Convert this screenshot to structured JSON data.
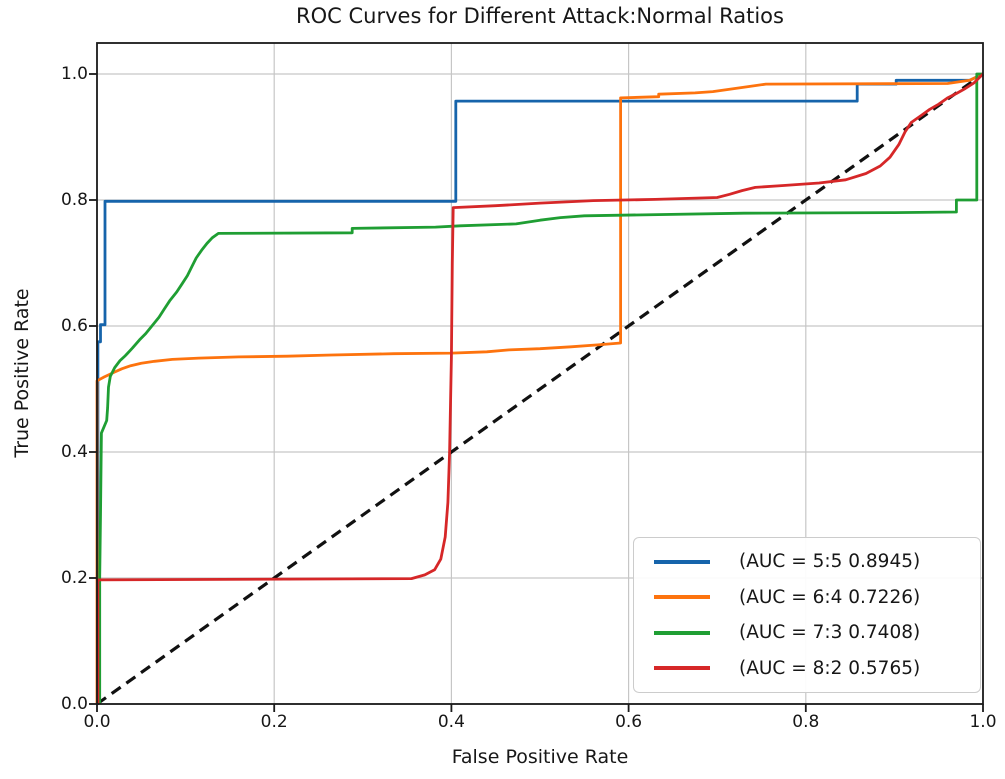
{
  "title": "ROC Curves for Different Attack:Normal Ratios",
  "chart_data": {
    "type": "line",
    "title": "ROC Curves for Different Attack:Normal Ratios",
    "xlabel": "False Positive Rate",
    "ylabel": "True Positive Rate",
    "xlim": [
      0,
      1
    ],
    "ylim": [
      0,
      1.05
    ],
    "grid": true,
    "grid_color": "#c6c6c6",
    "spine_color": "#1a1a1a",
    "legend_position": "lower right",
    "x_ticks": [
      "0.0",
      "0.2",
      "0.4",
      "0.6",
      "0.8",
      "1.0"
    ],
    "y_ticks": [
      "0.0",
      "0.2",
      "0.4",
      "0.6",
      "0.8",
      "1.0"
    ],
    "series": [
      {
        "name": "chance-diagonal",
        "label": "",
        "color": "#111111",
        "style": "dashed",
        "in_legend": false,
        "points": [
          [
            0,
            0
          ],
          [
            1,
            1
          ]
        ]
      },
      {
        "name": "ratio-5-5",
        "label": "(AUC = 5:5 0.8945)",
        "color": "#1664ab",
        "style": "solid",
        "in_legend": true,
        "points": [
          [
            0.001,
            0
          ],
          [
            0.001,
            0.575
          ],
          [
            0.004,
            0.575
          ],
          [
            0.004,
            0.602
          ],
          [
            0.009,
            0.602
          ],
          [
            0.009,
            0.798
          ],
          [
            0.405,
            0.798
          ],
          [
            0.405,
            0.957
          ],
          [
            0.858,
            0.957
          ],
          [
            0.858,
            0.984
          ],
          [
            0.902,
            0.984
          ],
          [
            0.902,
            0.99
          ],
          [
            0.985,
            0.99
          ],
          [
            1,
            1
          ]
        ]
      },
      {
        "name": "ratio-6-4",
        "label": "(AUC = 6:4 0.7226)",
        "color": "#fd730e",
        "style": "solid",
        "in_legend": true,
        "points": [
          [
            0,
            0
          ],
          [
            0,
            0.513
          ],
          [
            0.008,
            0.519
          ],
          [
            0.014,
            0.523
          ],
          [
            0.02,
            0.527
          ],
          [
            0.028,
            0.532
          ],
          [
            0.038,
            0.537
          ],
          [
            0.05,
            0.541
          ],
          [
            0.065,
            0.544
          ],
          [
            0.085,
            0.547
          ],
          [
            0.115,
            0.549
          ],
          [
            0.16,
            0.551
          ],
          [
            0.215,
            0.552
          ],
          [
            0.265,
            0.554
          ],
          [
            0.335,
            0.556
          ],
          [
            0.4,
            0.557
          ],
          [
            0.44,
            0.559
          ],
          [
            0.465,
            0.562
          ],
          [
            0.5,
            0.564
          ],
          [
            0.535,
            0.567
          ],
          [
            0.565,
            0.57
          ],
          [
            0.591,
            0.573
          ],
          [
            0.591,
            0.962
          ],
          [
            0.634,
            0.964
          ],
          [
            0.634,
            0.968
          ],
          [
            0.675,
            0.97
          ],
          [
            0.695,
            0.972
          ],
          [
            0.715,
            0.976
          ],
          [
            0.735,
            0.98
          ],
          [
            0.755,
            0.984
          ],
          [
            0.96,
            0.985
          ],
          [
            0.985,
            0.99
          ],
          [
            1,
            1
          ]
        ]
      },
      {
        "name": "ratio-7-3",
        "label": "(AUC = 7:3 0.7408)",
        "color": "#1f9e33",
        "style": "solid",
        "in_legend": true,
        "points": [
          [
            0.003,
            0
          ],
          [
            0.003,
            0.2
          ],
          [
            0.004,
            0.3
          ],
          [
            0.005,
            0.43
          ],
          [
            0.011,
            0.45
          ],
          [
            0.012,
            0.47
          ],
          [
            0.013,
            0.503
          ],
          [
            0.015,
            0.52
          ],
          [
            0.02,
            0.534
          ],
          [
            0.026,
            0.545
          ],
          [
            0.032,
            0.553
          ],
          [
            0.04,
            0.565
          ],
          [
            0.048,
            0.578
          ],
          [
            0.055,
            0.588
          ],
          [
            0.062,
            0.6
          ],
          [
            0.07,
            0.614
          ],
          [
            0.076,
            0.627
          ],
          [
            0.082,
            0.64
          ],
          [
            0.09,
            0.654
          ],
          [
            0.096,
            0.667
          ],
          [
            0.102,
            0.68
          ],
          [
            0.107,
            0.694
          ],
          [
            0.112,
            0.708
          ],
          [
            0.118,
            0.72
          ],
          [
            0.124,
            0.731
          ],
          [
            0.13,
            0.74
          ],
          [
            0.137,
            0.747
          ],
          [
            0.288,
            0.748
          ],
          [
            0.288,
            0.755
          ],
          [
            0.382,
            0.757
          ],
          [
            0.41,
            0.759
          ],
          [
            0.473,
            0.762
          ],
          [
            0.5,
            0.768
          ],
          [
            0.523,
            0.772
          ],
          [
            0.55,
            0.775
          ],
          [
            0.73,
            0.779
          ],
          [
            0.9,
            0.78
          ],
          [
            0.97,
            0.781
          ],
          [
            0.97,
            0.8
          ],
          [
            0.993,
            0.8
          ],
          [
            0.993,
            1.0
          ],
          [
            1,
            1
          ]
        ]
      },
      {
        "name": "ratio-8-2",
        "label": "(AUC = 8:2 0.5765)",
        "color": "#d62728",
        "style": "solid",
        "in_legend": true,
        "points": [
          [
            0.001,
            0
          ],
          [
            0.001,
            0.197
          ],
          [
            0.355,
            0.199
          ],
          [
            0.37,
            0.205
          ],
          [
            0.381,
            0.213
          ],
          [
            0.388,
            0.23
          ],
          [
            0.393,
            0.265
          ],
          [
            0.396,
            0.32
          ],
          [
            0.398,
            0.4
          ],
          [
            0.4,
            0.55
          ],
          [
            0.401,
            0.7
          ],
          [
            0.402,
            0.788
          ],
          [
            0.45,
            0.791
          ],
          [
            0.5,
            0.795
          ],
          [
            0.56,
            0.799
          ],
          [
            0.63,
            0.801
          ],
          [
            0.7,
            0.804
          ],
          [
            0.714,
            0.809
          ],
          [
            0.728,
            0.815
          ],
          [
            0.743,
            0.82
          ],
          [
            0.775,
            0.823
          ],
          [
            0.815,
            0.827
          ],
          [
            0.845,
            0.832
          ],
          [
            0.868,
            0.842
          ],
          [
            0.884,
            0.854
          ],
          [
            0.895,
            0.868
          ],
          [
            0.905,
            0.888
          ],
          [
            0.912,
            0.908
          ],
          [
            0.919,
            0.923
          ],
          [
            0.93,
            0.934
          ],
          [
            0.94,
            0.944
          ],
          [
            0.95,
            0.952
          ],
          [
            0.96,
            0.962
          ],
          [
            0.97,
            0.969
          ],
          [
            0.98,
            0.977
          ],
          [
            0.99,
            0.986
          ],
          [
            1,
            1
          ]
        ]
      }
    ]
  }
}
